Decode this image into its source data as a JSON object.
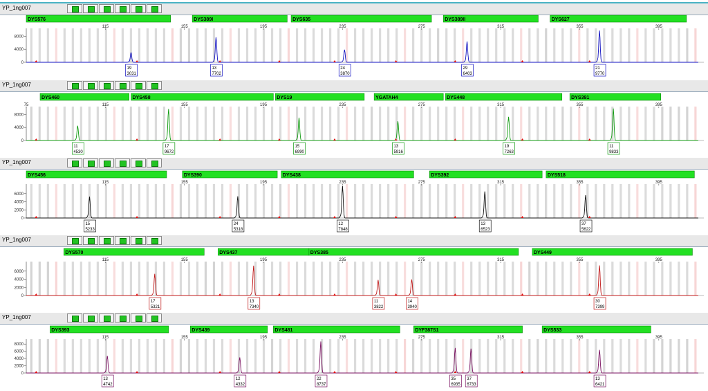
{
  "chart_data": [
    {
      "type": "line",
      "title": "YP_1ng007",
      "color": "#1010c0",
      "x_ticks": [
        115,
        155,
        195,
        235,
        275,
        315,
        355,
        395
      ],
      "y_ticks": [
        0,
        4000,
        8000
      ],
      "ylim": [
        0,
        10000
      ],
      "markers": [
        {
          "name": "DYS576",
          "start": 75,
          "end": 148
        },
        {
          "name": "DYS389I",
          "start": 159,
          "end": 207
        },
        {
          "name": "DYS635",
          "start": 209,
          "end": 280
        },
        {
          "name": "DYS389II",
          "start": 286,
          "end": 334
        },
        {
          "name": "DYS627",
          "start": 340,
          "end": 409
        }
      ],
      "peaks": [
        {
          "allele": "19",
          "height": 3031,
          "x": 128
        },
        {
          "allele": "13",
          "height": 7702,
          "x": 171
        },
        {
          "allele": "24",
          "height": 3870,
          "x": 236
        },
        {
          "allele": "29",
          "height": 6403,
          "x": 298
        },
        {
          "allele": "21",
          "height": 9770,
          "x": 365
        }
      ]
    },
    {
      "type": "line",
      "title": "YP_1ng007",
      "color": "#0f9a0f",
      "x_ticks": [
        75,
        115,
        155,
        195,
        235,
        275,
        315,
        355,
        395
      ],
      "y_ticks": [
        0,
        4000,
        8000
      ],
      "ylim": [
        0,
        10000
      ],
      "markers": [
        {
          "name": "DYS460",
          "start": 82,
          "end": 127
        },
        {
          "name": "DYS458",
          "start": 128,
          "end": 200
        },
        {
          "name": "DYS19",
          "start": 201,
          "end": 246
        },
        {
          "name": "YGATAH4",
          "start": 251,
          "end": 286
        },
        {
          "name": "DYS448",
          "start": 287,
          "end": 346
        },
        {
          "name": "DYS391",
          "start": 350,
          "end": 396
        }
      ],
      "peaks": [
        {
          "allele": "11",
          "height": 4530,
          "x": 101
        },
        {
          "allele": "17",
          "height": 9672,
          "x": 147
        },
        {
          "allele": "15",
          "height": 6990,
          "x": 213
        },
        {
          "allele": "13",
          "height": 5916,
          "x": 263
        },
        {
          "allele": "19",
          "height": 7263,
          "x": 319
        },
        {
          "allele": "11",
          "height": 9833,
          "x": 372
        }
      ]
    },
    {
      "type": "line",
      "title": "YP_1ng007",
      "color": "#111111",
      "x_ticks": [
        115,
        155,
        195,
        235,
        275,
        315,
        355,
        395
      ],
      "y_ticks": [
        0,
        2000,
        4000,
        6000
      ],
      "ylim": [
        0,
        8000
      ],
      "markers": [
        {
          "name": "DYS456",
          "start": 75,
          "end": 146
        },
        {
          "name": "DYS390",
          "start": 154,
          "end": 202
        },
        {
          "name": "DYS438",
          "start": 204,
          "end": 271
        },
        {
          "name": "DYS392",
          "start": 279,
          "end": 336
        },
        {
          "name": "DYS518",
          "start": 338,
          "end": 413
        }
      ],
      "peaks": [
        {
          "allele": "15",
          "height": 5233,
          "x": 107
        },
        {
          "allele": "24",
          "height": 5318,
          "x": 182
        },
        {
          "allele": "12",
          "height": 7848,
          "x": 235
        },
        {
          "allele": "13",
          "height": 6523,
          "x": 307
        },
        {
          "allele": "37",
          "height": 5622,
          "x": 358
        }
      ]
    },
    {
      "type": "line",
      "title": "YP_1ng007",
      "color": "#c01818",
      "x_ticks": [
        115,
        155,
        195,
        235,
        275,
        315,
        355,
        395
      ],
      "y_ticks": [
        0,
        2000,
        4000,
        6000
      ],
      "ylim": [
        0,
        8000
      ],
      "markers": [
        {
          "name": "DYS570",
          "start": 94,
          "end": 165
        },
        {
          "name": "DYS437",
          "start": 172,
          "end": 218
        },
        {
          "name": "DYS385",
          "start": 218,
          "end": 324
        },
        {
          "name": "DYS449",
          "start": 331,
          "end": 412
        }
      ],
      "peaks": [
        {
          "allele": "17",
          "height": 5321,
          "x": 140
        },
        {
          "allele": "13",
          "height": 7340,
          "x": 190
        },
        {
          "allele": "11",
          "height": 3822,
          "x": 253
        },
        {
          "allele": "14",
          "height": 3940,
          "x": 270
        },
        {
          "allele": "30",
          "height": 7399,
          "x": 365
        }
      ]
    },
    {
      "type": "line",
      "title": "YP_1ng007",
      "color": "#7a1060",
      "x_ticks": [
        115,
        155,
        195,
        235,
        275,
        315,
        355,
        395
      ],
      "y_ticks": [
        0,
        2000,
        4000,
        6000,
        8000
      ],
      "ylim": [
        0,
        9000
      ],
      "markers": [
        {
          "name": "DYS393",
          "start": 87,
          "end": 147
        },
        {
          "name": "DYS439",
          "start": 158,
          "end": 197
        },
        {
          "name": "DYS481",
          "start": 200,
          "end": 264
        },
        {
          "name": "DYF387S1",
          "start": 271,
          "end": 326
        },
        {
          "name": "DYS533",
          "start": 336,
          "end": 391
        }
      ],
      "peaks": [
        {
          "allele": "13",
          "height": 4742,
          "x": 116
        },
        {
          "allele": "12",
          "height": 4332,
          "x": 183
        },
        {
          "allele": "22",
          "height": 8737,
          "x": 224
        },
        {
          "allele": "35",
          "height": 6935,
          "x": 292
        },
        {
          "allele": "37",
          "height": 6733,
          "x": 300
        },
        {
          "allele": "13",
          "height": 6421,
          "x": 365
        }
      ]
    }
  ]
}
